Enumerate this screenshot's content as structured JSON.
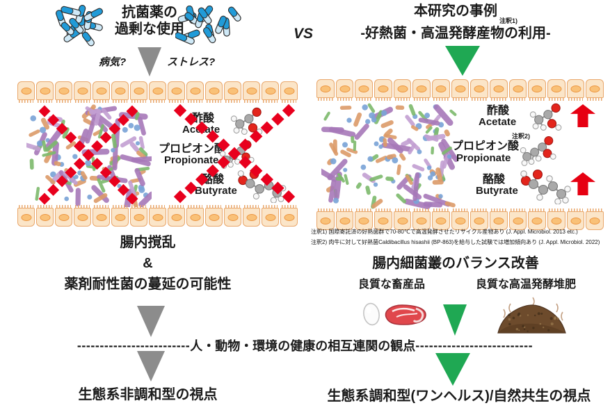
{
  "colors": {
    "green": "#1fa853",
    "gray": "#8c8c8c",
    "red": "#e60012",
    "x_red": "#e8001d"
  },
  "vs": "VS",
  "left": {
    "title_line1": "抗菌薬の",
    "title_line2": "過剰な使用",
    "question_disease": "病気?",
    "question_stress": "ストレス?",
    "scfa": {
      "acetate_jp": "酢酸",
      "acetate_en": "Acetate",
      "propionate_jp": "プロピオン酸",
      "propionate_en": "Propionate",
      "butyrate_jp": "酪酸",
      "butyrate_en": "Butyrate"
    },
    "outcome_line1": "腸内撹乱",
    "outcome_amp": "&",
    "outcome_line2": "薬剤耐性菌の蔓延の可能性",
    "bottom_view": "生態系非調和型の視点"
  },
  "right": {
    "title_line1": "本研究の事例",
    "title_note": "注釈1)",
    "title_line2": "-好熱菌・高温発酵産物の利用-",
    "scfa": {
      "acetate_jp": "酢酸",
      "acetate_en": "Acetate",
      "propionate_note": "注釈2)",
      "propionate_jp": "プロピオン酸",
      "propionate_en": "Propionate",
      "butyrate_jp": "酪酸",
      "butyrate_en": "Butyrate"
    },
    "footnote_1": "注釈1) 国際寄託済の好熱菌群で70-80℃で高温発酵させたリサイクル産物あり (J. Appl. Microbiol. 2013 etc.)",
    "footnote_2": "注釈2) 肉牛に対して好熱菌Caldibacillus hisashii (BP-863)を給与した試験では増加傾向あり (J. Appl. Microbiol. 2022)",
    "outcome": "腸内細菌叢のバランス改善",
    "product_livestock": "良質な畜産品",
    "product_compost": "良質な高温発酵堆肥",
    "bottom_view": "生態系調和型(ワンヘルス)/自然共生の視点"
  },
  "divider": {
    "dashes_left": "-------------------------",
    "label": "人・動物・環境の健康の相互連関の観点",
    "dashes_right": "--------------------------"
  }
}
